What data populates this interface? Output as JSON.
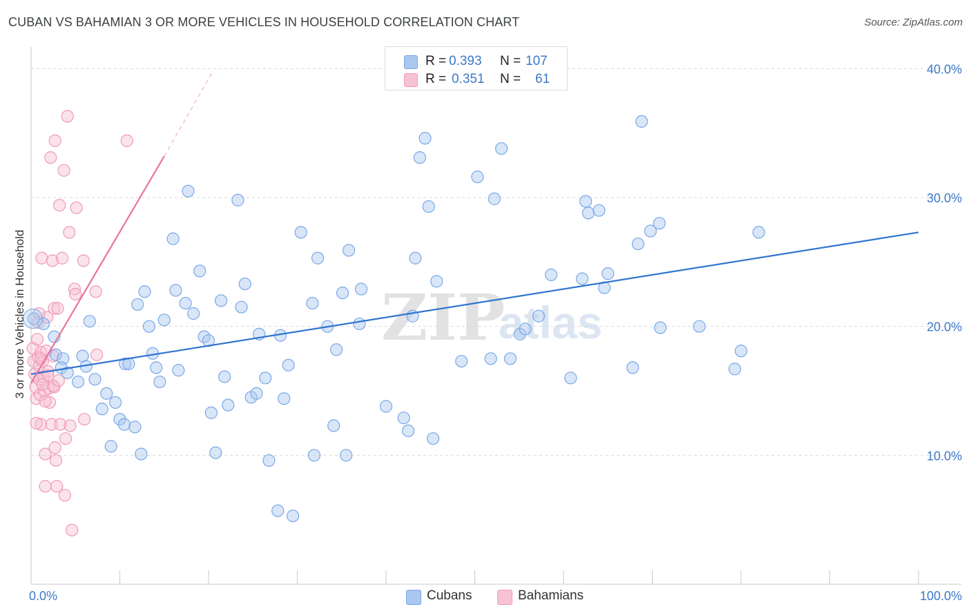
{
  "title": "CUBAN VS BAHAMIAN 3 OR MORE VEHICLES IN HOUSEHOLD CORRELATION CHART",
  "source": "Source: ZipAtlas.com",
  "watermark": {
    "zip": "ZIP",
    "atlas": "atlas"
  },
  "colors": {
    "cuban": "#7aa7e8",
    "cuban_fill": "#a9c7ef",
    "bahamian": "#f09ab5",
    "bahamian_fill": "#f7c2d3",
    "cuban_line": "#2f74cf",
    "bahamian_line": "#e8739c",
    "tick_text": "#3b78c9"
  },
  "legend": {
    "r_label": "R =",
    "n_label": "N =",
    "cuban": {
      "r": "0.393",
      "n": "107"
    },
    "bahamian": {
      "r": "0.351",
      "n": "61"
    }
  },
  "bottom_legend": {
    "cuban": "Cubans",
    "bahamian": "Bahamians"
  },
  "chart_data": {
    "type": "scatter",
    "title": "CUBAN VS BAHAMIAN 3 OR MORE VEHICLES IN HOUSEHOLD CORRELATION CHART",
    "xlabel": "",
    "ylabel": "3 or more Vehicles in Household",
    "xlim": [
      0,
      100
    ],
    "ylim": [
      0,
      42
    ],
    "x_tick_labels": [
      "0.0%",
      "100.0%"
    ],
    "y_ticks": [
      10,
      20,
      30,
      40
    ],
    "y_tick_labels": [
      "10.0%",
      "20.0%",
      "30.0%",
      "40.0%"
    ],
    "grid": true,
    "legend_position": "top-center",
    "series": [
      {
        "name": "Cubans",
        "r": 0.393,
        "n": 107,
        "trend": {
          "x": [
            0,
            100
          ],
          "y": [
            16.3,
            27.3
          ]
        },
        "points": [
          [
            0.3,
            20.6
          ],
          [
            1.4,
            20.2
          ],
          [
            2.6,
            19.2
          ],
          [
            2.8,
            17.8
          ],
          [
            3.6,
            17.5
          ],
          [
            3.4,
            16.8
          ],
          [
            4.1,
            16.4
          ],
          [
            5.8,
            17.7
          ],
          [
            5.3,
            15.7
          ],
          [
            6.2,
            16.9
          ],
          [
            6.6,
            20.4
          ],
          [
            7.2,
            15.9
          ],
          [
            8.0,
            13.6
          ],
          [
            8.5,
            14.8
          ],
          [
            9.0,
            10.7
          ],
          [
            9.5,
            14.1
          ],
          [
            10.0,
            12.8
          ],
          [
            10.5,
            12.4
          ],
          [
            10.6,
            17.1
          ],
          [
            11.0,
            17.1
          ],
          [
            11.7,
            12.2
          ],
          [
            12.0,
            21.7
          ],
          [
            12.4,
            10.1
          ],
          [
            12.8,
            22.7
          ],
          [
            13.3,
            20.0
          ],
          [
            13.7,
            17.9
          ],
          [
            14.1,
            16.8
          ],
          [
            14.5,
            15.7
          ],
          [
            15.0,
            20.5
          ],
          [
            16.0,
            26.8
          ],
          [
            16.3,
            22.8
          ],
          [
            16.6,
            16.6
          ],
          [
            17.4,
            21.8
          ],
          [
            17.7,
            30.5
          ],
          [
            18.3,
            21.0
          ],
          [
            19.0,
            24.3
          ],
          [
            19.5,
            19.2
          ],
          [
            20.0,
            18.9
          ],
          [
            20.3,
            13.3
          ],
          [
            20.8,
            10.2
          ],
          [
            21.4,
            22.0
          ],
          [
            21.8,
            16.1
          ],
          [
            22.2,
            13.9
          ],
          [
            23.3,
            29.8
          ],
          [
            23.7,
            21.5
          ],
          [
            24.1,
            23.3
          ],
          [
            24.8,
            14.5
          ],
          [
            25.4,
            14.8
          ],
          [
            25.7,
            19.4
          ],
          [
            26.4,
            16.0
          ],
          [
            26.8,
            9.6
          ],
          [
            27.8,
            5.7
          ],
          [
            28.1,
            19.3
          ],
          [
            28.5,
            14.4
          ],
          [
            29.0,
            17.0
          ],
          [
            29.5,
            5.3
          ],
          [
            30.4,
            27.3
          ],
          [
            31.7,
            21.8
          ],
          [
            31.9,
            10.0
          ],
          [
            32.3,
            25.3
          ],
          [
            33.4,
            20.0
          ],
          [
            34.1,
            12.3
          ],
          [
            34.4,
            18.2
          ],
          [
            35.1,
            22.6
          ],
          [
            35.5,
            10.0
          ],
          [
            35.8,
            25.9
          ],
          [
            37.0,
            20.2
          ],
          [
            37.2,
            22.9
          ],
          [
            40.0,
            13.8
          ],
          [
            42.0,
            12.9
          ],
          [
            42.5,
            11.9
          ],
          [
            43.0,
            20.8
          ],
          [
            43.3,
            25.3
          ],
          [
            43.8,
            33.1
          ],
          [
            44.4,
            34.6
          ],
          [
            44.8,
            29.3
          ],
          [
            45.3,
            11.3
          ],
          [
            45.7,
            23.5
          ],
          [
            48.5,
            17.3
          ],
          [
            50.3,
            31.6
          ],
          [
            51.8,
            17.5
          ],
          [
            52.2,
            29.9
          ],
          [
            53.0,
            33.8
          ],
          [
            54.0,
            17.5
          ],
          [
            55.1,
            19.4
          ],
          [
            55.7,
            19.8
          ],
          [
            57.2,
            20.8
          ],
          [
            58.6,
            24.0
          ],
          [
            60.8,
            16.0
          ],
          [
            62.1,
            23.7
          ],
          [
            62.5,
            29.7
          ],
          [
            62.8,
            28.8
          ],
          [
            64.0,
            29.0
          ],
          [
            64.6,
            23.0
          ],
          [
            65.0,
            24.1
          ],
          [
            67.8,
            16.8
          ],
          [
            68.4,
            26.4
          ],
          [
            68.8,
            35.9
          ],
          [
            69.8,
            27.4
          ],
          [
            70.8,
            28.0
          ],
          [
            70.9,
            19.9
          ],
          [
            75.3,
            20.0
          ],
          [
            79.3,
            16.7
          ],
          [
            80.0,
            18.1
          ],
          [
            82.0,
            27.3
          ]
        ]
      },
      {
        "name": "Bahamians",
        "r": 0.351,
        "n": 61,
        "trend": {
          "x": [
            0,
            15.0
          ],
          "y": [
            15.6,
            33.2
          ]
        },
        "trend_dashed": {
          "x": [
            15.0,
            20.5
          ],
          "y": [
            33.2,
            39.8
          ]
        },
        "points": [
          [
            0.2,
            18.3
          ],
          [
            0.3,
            17.3
          ],
          [
            0.4,
            16.3
          ],
          [
            0.5,
            15.3
          ],
          [
            0.6,
            14.4
          ],
          [
            0.7,
            19.0
          ],
          [
            0.8,
            20.3
          ],
          [
            0.8,
            17.6
          ],
          [
            0.9,
            16.9
          ],
          [
            0.9,
            15.9
          ],
          [
            1.0,
            14.7
          ],
          [
            1.1,
            18.0
          ],
          [
            1.1,
            12.4
          ],
          [
            1.2,
            25.3
          ],
          [
            1.3,
            17.3
          ],
          [
            1.4,
            16.1
          ],
          [
            1.5,
            15.0
          ],
          [
            1.6,
            10.1
          ],
          [
            1.6,
            7.6
          ],
          [
            1.7,
            18.1
          ],
          [
            1.8,
            20.7
          ],
          [
            1.9,
            16.5
          ],
          [
            2.0,
            15.2
          ],
          [
            2.1,
            14.1
          ],
          [
            2.2,
            33.1
          ],
          [
            2.3,
            12.4
          ],
          [
            2.4,
            25.1
          ],
          [
            2.5,
            17.7
          ],
          [
            2.6,
            15.3
          ],
          [
            2.7,
            10.6
          ],
          [
            2.8,
            9.6
          ],
          [
            2.9,
            7.6
          ],
          [
            2.6,
            21.4
          ],
          [
            3.0,
            21.4
          ],
          [
            2.7,
            34.4
          ],
          [
            3.2,
            29.4
          ],
          [
            3.3,
            12.4
          ],
          [
            3.5,
            25.3
          ],
          [
            3.7,
            32.1
          ],
          [
            3.8,
            6.9
          ],
          [
            3.9,
            11.3
          ],
          [
            4.1,
            36.3
          ],
          [
            4.3,
            27.3
          ],
          [
            4.4,
            12.3
          ],
          [
            4.6,
            4.2
          ],
          [
            4.9,
            22.9
          ],
          [
            5.0,
            22.5
          ],
          [
            5.1,
            29.2
          ],
          [
            5.9,
            25.1
          ],
          [
            6.0,
            12.8
          ],
          [
            7.3,
            22.7
          ],
          [
            7.4,
            17.8
          ],
          [
            10.8,
            34.4
          ],
          [
            1.1,
            17.5
          ],
          [
            1.9,
            16.2
          ],
          [
            2.5,
            15.4
          ],
          [
            3.1,
            15.8
          ],
          [
            0.9,
            21.0
          ],
          [
            1.3,
            15.5
          ],
          [
            1.6,
            14.2
          ],
          [
            0.6,
            12.5
          ]
        ]
      }
    ]
  }
}
